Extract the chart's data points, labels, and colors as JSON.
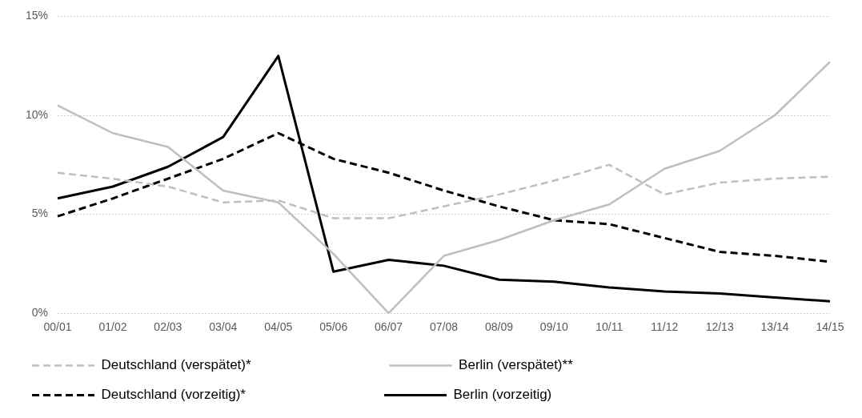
{
  "chart_data": {
    "type": "line",
    "categories": [
      "00/01",
      "01/02",
      "02/03",
      "03/04",
      "04/05",
      "05/06",
      "06/07",
      "07/08",
      "08/09",
      "09/10",
      "10/11",
      "11/12",
      "12/13",
      "13/14",
      "14/15"
    ],
    "series": [
      {
        "name": "Deutschland (verspätet)*",
        "color": "#bfbfbf",
        "line_style": "dashed",
        "values": [
          7.1,
          6.8,
          6.4,
          5.6,
          5.7,
          4.8,
          4.8,
          5.4,
          6.0,
          6.7,
          7.5,
          6.0,
          6.6,
          6.8,
          6.9
        ]
      },
      {
        "name": "Berlin (verspätet)**",
        "color": "#bfbfbf",
        "line_style": "solid",
        "values": [
          10.5,
          9.1,
          8.4,
          6.2,
          5.6,
          3.0,
          0.0,
          2.9,
          3.7,
          4.7,
          5.5,
          7.3,
          8.2,
          10.0,
          12.7
        ]
      },
      {
        "name": "Deutschland (vorzeitig)*",
        "color": "#000000",
        "line_style": "dashed",
        "values": [
          4.9,
          5.8,
          6.8,
          7.8,
          9.1,
          7.8,
          7.1,
          6.2,
          5.4,
          4.7,
          4.5,
          3.8,
          3.1,
          2.9,
          2.6
        ]
      },
      {
        "name": "Berlin (vorzeitig)",
        "color": "#000000",
        "line_style": "solid",
        "values": [
          5.8,
          6.4,
          7.4,
          8.9,
          13.0,
          2.1,
          2.7,
          2.4,
          1.7,
          1.6,
          1.3,
          1.1,
          1.0,
          0.8,
          0.6
        ]
      }
    ],
    "ylim": [
      0,
      15
    ],
    "yticks": [
      {
        "value": 0,
        "label": "0%"
      },
      {
        "value": 5,
        "label": "5%"
      },
      {
        "value": 10,
        "label": "10%"
      },
      {
        "value": 15,
        "label": "15%"
      }
    ],
    "grid": "y",
    "legend": "bottom",
    "marker": "none"
  }
}
